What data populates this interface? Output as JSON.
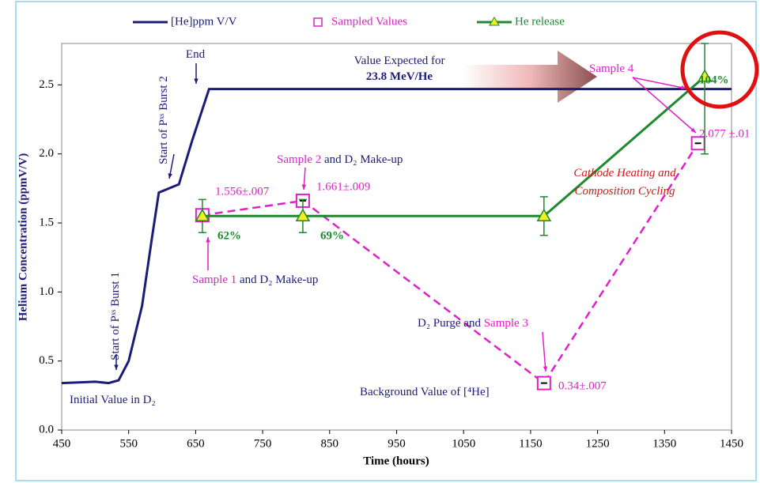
{
  "chart_data": {
    "type": "line",
    "x_label": "Time (hours)",
    "y_label": "Helium Concentration (ppmV/V)",
    "xlim": [
      450,
      1450
    ],
    "xticks": [
      450,
      550,
      650,
      750,
      850,
      950,
      1050,
      1150,
      1250,
      1350,
      1450
    ],
    "ylim": [
      0,
      2.8
    ],
    "yticks": [
      {
        "value": 0,
        "label": "0.0"
      },
      0.5,
      {
        "value": 1,
        "label": "1.0"
      },
      1.5,
      {
        "value": 2,
        "label": "2.0"
      },
      2.5
    ],
    "series": [
      {
        "name": "[He]ppm V/V",
        "color": "#1c1c78",
        "marker": "none",
        "line_style": "solid",
        "x": [
          450,
          500,
          520,
          535,
          550,
          570,
          585,
          595,
          610,
          625,
          645,
          670,
          1450
        ],
        "values": [
          0.34,
          0.35,
          0.34,
          0.36,
          0.5,
          0.9,
          1.4,
          1.72,
          1.75,
          1.78,
          2.1,
          2.47,
          2.47
        ]
      },
      {
        "name": "Sampled Values",
        "color": "#e020c8",
        "marker": "square",
        "line_style": "dashed",
        "x": [
          660,
          810,
          1170,
          1400
        ],
        "values": [
          1.556,
          1.661,
          0.34,
          2.077
        ],
        "value_labels": [
          "1.556±.007",
          "1.661±.009",
          "0.34±.007",
          "2.077 ±.01"
        ]
      },
      {
        "name": "He release",
        "color": "#1e8a2e",
        "marker": "triangle",
        "line_style": "solid",
        "x": [
          660,
          810,
          1170,
          1410
        ],
        "values": [
          1.55,
          1.55,
          1.55,
          2.56
        ],
        "errors": [
          0.12,
          0.12,
          0.14,
          0.56
        ],
        "value_labels": [
          "62%",
          "69%",
          null,
          "104%"
        ]
      }
    ],
    "annotations": [
      {
        "parts": [
          {
            "text": "End",
            "color": "#1c1c78"
          }
        ]
      },
      {
        "parts": [
          {
            "text": "Value Expected for",
            "color": "#1c1c78"
          }
        ]
      },
      {
        "parts": [
          {
            "text": "23.8 MeV/He",
            "color": "#1c1c78"
          }
        ]
      },
      {
        "parts": [
          {
            "text": "Start of Pˣˢ Burst 2",
            "color": "#1c1c78"
          }
        ]
      },
      {
        "parts": [
          {
            "text": "Start of Pˣˢ Burst 1",
            "color": "#1c1c78"
          }
        ]
      },
      {
        "parts": [
          {
            "text": "Initial Value in D₂",
            "color": "#1c1c78"
          }
        ]
      },
      {
        "parts": [
          {
            "text": "Sample 1",
            "color": "#e020c8"
          },
          {
            "text": " and D₂ Make-up",
            "color": "#1c1c78"
          }
        ]
      },
      {
        "parts": [
          {
            "text": "Sample 2",
            "color": "#e020c8"
          },
          {
            "text": " and D₂ Make-up",
            "color": "#1c1c78"
          }
        ]
      },
      {
        "parts": [
          {
            "text": "D₂ Purge and ",
            "color": "#1c1c78"
          },
          {
            "text": "Sample 3",
            "color": "#e020c8"
          }
        ]
      },
      {
        "parts": [
          {
            "text": "Background Value of [⁴He]",
            "color": "#1c1c78"
          }
        ]
      },
      {
        "parts": [
          {
            "text": "Sample 4",
            "color": "#e020c8"
          }
        ]
      },
      {
        "parts": [
          {
            "text": "Cathode Heating and",
            "color": "#d01818"
          }
        ]
      },
      {
        "parts": [
          {
            "text": "Composition Cycling",
            "color": "#d01818"
          }
        ]
      }
    ]
  }
}
